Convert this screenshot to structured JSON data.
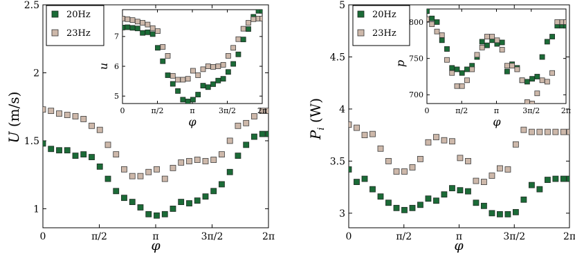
{
  "chart_data": [
    {
      "type": "scatter",
      "xlabel": "φ",
      "ylabel": "U (m/s)",
      "xlim": [
        0,
        6.2832
      ],
      "ylim": [
        0.86,
        2.5
      ],
      "xticks": [
        0,
        1.5708,
        3.1416,
        4.7124,
        6.2832
      ],
      "xticklabels": [
        "0",
        "π/2",
        "π",
        "3π/2",
        "2π"
      ],
      "yticks": [
        1,
        1.5,
        2,
        2.5
      ],
      "yticklabels": [
        "1",
        "1.5",
        "2",
        "2.5"
      ],
      "legend": {
        "placement": "top-left"
      },
      "series": [
        {
          "name": "20Hz",
          "color": "#1b6b37",
          "x": [
            0.0,
            0.226,
            0.453,
            0.679,
            0.906,
            1.132,
            1.359,
            1.585,
            1.812,
            2.038,
            2.264,
            2.491,
            2.717,
            2.944,
            3.17,
            3.397,
            3.623,
            3.849,
            4.076,
            4.302,
            4.529,
            4.755,
            4.981,
            5.208,
            5.434,
            5.661,
            5.887,
            6.113,
            6.283
          ],
          "y": [
            1.48,
            1.44,
            1.43,
            1.43,
            1.39,
            1.4,
            1.38,
            1.31,
            1.22,
            1.13,
            1.08,
            1.05,
            1.01,
            0.96,
            0.95,
            0.96,
            1.0,
            1.05,
            1.04,
            1.06,
            1.09,
            1.13,
            1.18,
            1.27,
            1.39,
            1.47,
            1.53,
            1.55,
            1.55
          ]
        },
        {
          "name": "23Hz",
          "color": "#cdb8aa",
          "x": [
            0.0,
            0.226,
            0.453,
            0.679,
            0.906,
            1.132,
            1.359,
            1.585,
            1.812,
            2.038,
            2.264,
            2.491,
            2.717,
            2.944,
            3.17,
            3.397,
            3.623,
            3.849,
            4.076,
            4.302,
            4.529,
            4.755,
            4.981,
            5.208,
            5.434,
            5.661,
            5.887,
            6.113,
            6.283
          ],
          "y": [
            1.73,
            1.72,
            1.7,
            1.69,
            1.68,
            1.66,
            1.61,
            1.58,
            1.47,
            1.4,
            1.29,
            1.24,
            1.24,
            1.27,
            1.29,
            1.22,
            1.3,
            1.34,
            1.35,
            1.36,
            1.35,
            1.36,
            1.4,
            1.5,
            1.61,
            1.63,
            1.68,
            1.72,
            1.72
          ]
        }
      ],
      "inset": {
        "xlabel": "φ",
        "ylabel": "u",
        "xlim": [
          0,
          6.2832
        ],
        "ylim": [
          4.75,
          7.9
        ],
        "xticks": [
          0,
          1.5708,
          3.1416,
          4.7124,
          6.2832
        ],
        "xticklabels": [
          "0",
          "π/2",
          "π",
          "3π/2",
          "2π"
        ],
        "yticks": [
          5,
          6,
          7
        ],
        "yticklabels": [
          "5",
          "6",
          "7"
        ],
        "series": [
          {
            "name": "20Hz",
            "color": "#1b6b37",
            "x": [
              0.0,
              0.226,
              0.453,
              0.679,
              0.906,
              1.132,
              1.359,
              1.585,
              1.812,
              2.038,
              2.264,
              2.491,
              2.717,
              2.944,
              3.17,
              3.397,
              3.623,
              3.849,
              4.076,
              4.302,
              4.529,
              4.755,
              4.981,
              5.208,
              5.434,
              5.661,
              5.887,
              6.113,
              6.283
            ],
            "y": [
              7.3,
              7.31,
              7.29,
              7.27,
              7.12,
              7.14,
              7.08,
              6.62,
              6.17,
              5.7,
              5.41,
              5.17,
              4.88,
              4.82,
              4.88,
              5.05,
              5.35,
              5.3,
              5.4,
              5.52,
              5.58,
              5.81,
              6.08,
              6.4,
              6.9,
              7.25,
              7.66,
              7.86,
              7.86
            ]
          },
          {
            "name": "23Hz",
            "color": "#cdb8aa",
            "x": [
              0.0,
              0.226,
              0.453,
              0.679,
              0.906,
              1.132,
              1.359,
              1.585,
              1.812,
              2.038,
              2.264,
              2.491,
              2.717,
              2.944,
              3.17,
              3.397,
              3.623,
              3.849,
              4.076,
              4.302,
              4.529,
              4.755,
              4.981,
              5.208,
              5.434,
              5.661,
              5.887,
              6.113,
              6.283
            ],
            "y": [
              7.6,
              7.58,
              7.55,
              7.5,
              7.46,
              7.4,
              7.28,
              7.18,
              6.65,
              6.35,
              5.68,
              5.55,
              5.55,
              5.58,
              5.85,
              5.7,
              5.9,
              6.0,
              5.98,
              6.0,
              6.05,
              6.35,
              6.62,
              6.91,
              7.26,
              7.46,
              7.58,
              7.6,
              7.6
            ]
          }
        ]
      }
    },
    {
      "type": "scatter",
      "xlabel": "φ",
      "ylabel": "P_i (W)",
      "xlim": [
        0,
        6.2832
      ],
      "ylim": [
        2.86,
        5.0
      ],
      "xticks": [
        0,
        1.5708,
        3.1416,
        4.7124,
        6.2832
      ],
      "xticklabels": [
        "0",
        "π/2",
        "π",
        "3π/2",
        "2π"
      ],
      "yticks": [
        3,
        3.5,
        4,
        4.5,
        5
      ],
      "yticklabels": [
        "3",
        "3.5",
        "4",
        "4.5",
        "5"
      ],
      "legend": {
        "placement": "top-left"
      },
      "series": [
        {
          "name": "20Hz",
          "color": "#1b6b37",
          "x": [
            0.0,
            0.226,
            0.453,
            0.679,
            0.906,
            1.132,
            1.359,
            1.585,
            1.812,
            2.038,
            2.264,
            2.491,
            2.717,
            2.944,
            3.17,
            3.397,
            3.623,
            3.849,
            4.076,
            4.302,
            4.529,
            4.755,
            4.981,
            5.208,
            5.434,
            5.661,
            5.887,
            6.113,
            6.283
          ],
          "y": [
            3.42,
            3.3,
            3.33,
            3.23,
            3.16,
            3.1,
            3.05,
            3.03,
            3.05,
            3.08,
            3.14,
            3.12,
            3.18,
            3.24,
            3.22,
            3.21,
            3.1,
            3.07,
            3.0,
            2.99,
            2.99,
            3.01,
            3.13,
            3.27,
            3.23,
            3.32,
            3.33,
            3.33,
            3.33
          ]
        },
        {
          "name": "23Hz",
          "color": "#cdb8aa",
          "x": [
            0.0,
            0.226,
            0.453,
            0.679,
            0.906,
            1.132,
            1.359,
            1.585,
            1.812,
            2.038,
            2.264,
            2.491,
            2.717,
            2.944,
            3.17,
            3.397,
            3.623,
            3.849,
            4.076,
            4.302,
            4.529,
            4.755,
            4.981,
            5.208,
            5.434,
            5.661,
            5.887,
            6.113,
            6.283
          ],
          "y": [
            3.85,
            3.82,
            3.75,
            3.76,
            3.62,
            3.5,
            3.4,
            3.4,
            3.44,
            3.52,
            3.68,
            3.73,
            3.7,
            3.69,
            3.53,
            3.5,
            3.31,
            3.3,
            3.36,
            3.43,
            3.42,
            3.66,
            3.8,
            3.78,
            3.78,
            3.78,
            3.78,
            3.78,
            3.78
          ]
        }
      ],
      "inset": {
        "xlabel": "φ",
        "ylabel": "p",
        "xlim": [
          0,
          6.2832
        ],
        "ylim": [
          688,
          818
        ],
        "xticks": [
          0,
          1.5708,
          3.1416,
          4.7124,
          6.2832
        ],
        "xticklabels": [
          "0",
          "π/2",
          "π",
          "3π/2",
          "2π"
        ],
        "yticks": [
          700,
          750,
          800
        ],
        "yticklabels": [
          "700",
          "750",
          "800"
        ],
        "series": [
          {
            "name": "20Hz",
            "color": "#1b6b37",
            "x": [
              0.0,
              0.226,
              0.453,
              0.679,
              0.906,
              1.132,
              1.359,
              1.585,
              1.812,
              2.038,
              2.264,
              2.491,
              2.717,
              2.944,
              3.17,
              3.397,
              3.623,
              3.849,
              4.076,
              4.302,
              4.529,
              4.755,
              4.981,
              5.208,
              5.434,
              5.661,
              5.887,
              6.113,
              6.283
            ],
            "y": [
              815,
              805,
              800,
              775,
              763,
              737,
              735,
              730,
              735,
              740,
              752,
              773,
              768,
              775,
              770,
              772,
              732,
              742,
              737,
              720,
              718,
              722,
              725,
              752,
              773,
              780,
              795,
              795,
              795
            ]
          },
          {
            "name": "23Hz",
            "color": "#cdb8aa",
            "x": [
              0.0,
              0.226,
              0.453,
              0.679,
              0.906,
              1.132,
              1.359,
              1.585,
              1.812,
              2.038,
              2.264,
              2.491,
              2.717,
              2.944,
              3.17,
              3.397,
              3.623,
              3.849,
              4.076,
              4.302,
              4.529,
              4.755,
              4.981,
              5.208,
              5.434,
              5.661,
              5.887,
              6.113,
              6.283
            ],
            "y": [
              804,
              797,
              787,
              782,
              748,
              730,
              712,
              712,
              720,
              735,
              755,
              765,
              780,
              780,
              775,
              762,
              740,
              740,
              735,
              720,
              690,
              688,
              702,
              720,
              718,
              730,
              800,
              800,
              800
            ]
          }
        ]
      }
    }
  ]
}
